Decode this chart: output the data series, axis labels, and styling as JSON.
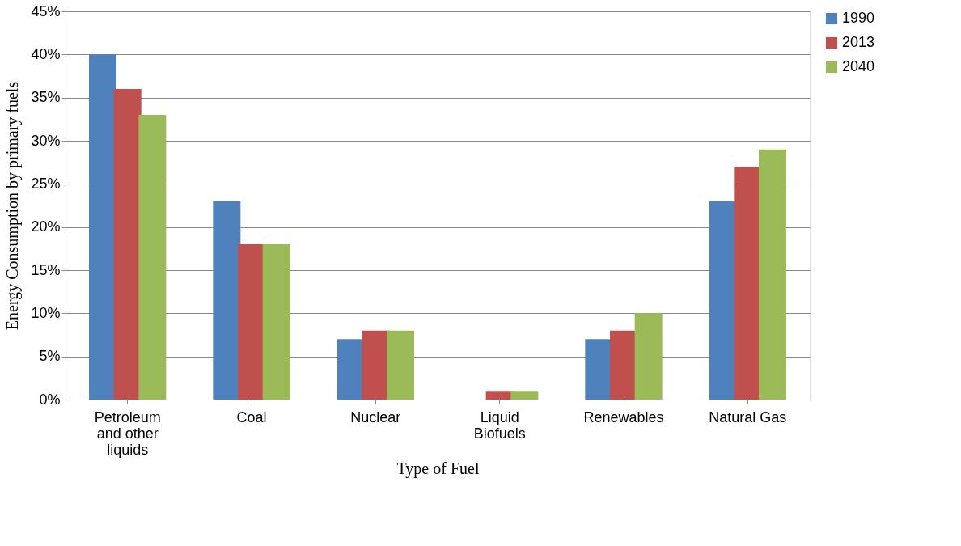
{
  "chart_data": {
    "type": "bar",
    "xlabel": "Type of Fuel",
    "ylabel": "Energy Consumption by primary fuels",
    "categories": [
      "Petroleum and other liquids",
      "Coal",
      "Nuclear",
      "Liquid Biofuels",
      "Renewables",
      "Natural Gas"
    ],
    "series": [
      {
        "name": "1990",
        "color": "#4f81bd",
        "values": [
          40,
          23,
          7,
          null,
          7,
          23
        ]
      },
      {
        "name": "2013",
        "color": "#c0504d",
        "values": [
          36,
          18,
          8,
          1,
          8,
          27
        ]
      },
      {
        "name": "2040",
        "color": "#9bbb59",
        "values": [
          33,
          18,
          8,
          1,
          10,
          29
        ]
      }
    ],
    "ylim": [
      0,
      45
    ],
    "yticks": [
      {
        "value": 0,
        "label": "0%"
      },
      {
        "value": 5,
        "label": "5%"
      },
      {
        "value": 10,
        "label": "10%"
      },
      {
        "value": 15,
        "label": "15%"
      },
      {
        "value": 20,
        "label": "20%"
      },
      {
        "value": 25,
        "label": "25%"
      },
      {
        "value": 30,
        "label": "30%"
      },
      {
        "value": 35,
        "label": "35%"
      },
      {
        "value": 40,
        "label": "40%"
      },
      {
        "value": 45,
        "label": "45%"
      }
    ],
    "grid": "y",
    "legend": "right"
  }
}
